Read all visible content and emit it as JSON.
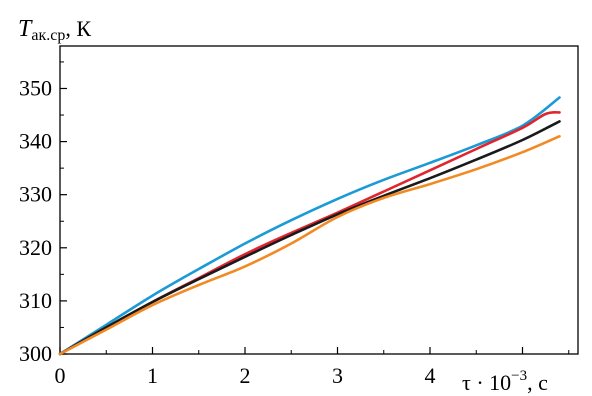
{
  "chart_data": {
    "type": "line",
    "ylabel": {
      "symbol": "T",
      "subscript": "ак.ср",
      "unit": ", К"
    },
    "xlabel": {
      "prefix": "τ · 10",
      "exponent": "−3",
      "unit": ", с"
    },
    "x_ticks": [
      "0",
      "1",
      "2",
      "3",
      "4"
    ],
    "y_ticks": [
      "300",
      "310",
      "320",
      "330",
      "340",
      "350"
    ],
    "xlim": [
      0,
      5.6
    ],
    "ylim": [
      300,
      358
    ],
    "grid": false,
    "series": [
      {
        "color": "#1a9ad6",
        "points": [
          [
            0,
            300
          ],
          [
            0.5,
            305.5
          ],
          [
            1,
            311
          ],
          [
            1.5,
            316
          ],
          [
            2,
            320.8
          ],
          [
            2.5,
            325.2
          ],
          [
            3,
            329.2
          ],
          [
            3.5,
            332.8
          ],
          [
            4,
            336
          ],
          [
            4.5,
            339.3
          ],
          [
            5,
            343
          ],
          [
            5.4,
            348.3
          ]
        ]
      },
      {
        "color": "#e0252e",
        "points": [
          [
            0,
            300
          ],
          [
            0.5,
            305
          ],
          [
            1,
            309.8
          ],
          [
            1.5,
            314.3
          ],
          [
            2,
            318.8
          ],
          [
            2.5,
            322.8
          ],
          [
            3,
            326.6
          ],
          [
            3.5,
            330.6
          ],
          [
            4,
            334.6
          ],
          [
            4.5,
            338.6
          ],
          [
            5,
            342.6
          ],
          [
            5.25,
            345.2
          ],
          [
            5.4,
            345.5
          ]
        ]
      },
      {
        "color": "#1a1a1a",
        "points": [
          [
            0,
            300
          ],
          [
            0.5,
            305
          ],
          [
            1,
            309.8
          ],
          [
            1.5,
            314.1
          ],
          [
            2,
            318.3
          ],
          [
            2.5,
            322.4
          ],
          [
            3,
            326.3
          ],
          [
            3.5,
            329.8
          ],
          [
            4,
            333.1
          ],
          [
            4.5,
            336.6
          ],
          [
            5,
            340.3
          ],
          [
            5.4,
            343.8
          ]
        ]
      },
      {
        "color": "#f28a24",
        "points": [
          [
            0,
            300
          ],
          [
            0.5,
            304.6
          ],
          [
            1,
            309.2
          ],
          [
            1.5,
            313
          ],
          [
            2,
            316.5
          ],
          [
            2.5,
            320.8
          ],
          [
            3,
            325.8
          ],
          [
            3.5,
            329.4
          ],
          [
            4,
            332
          ],
          [
            4.5,
            334.8
          ],
          [
            5,
            338
          ],
          [
            5.4,
            341
          ]
        ]
      }
    ]
  }
}
